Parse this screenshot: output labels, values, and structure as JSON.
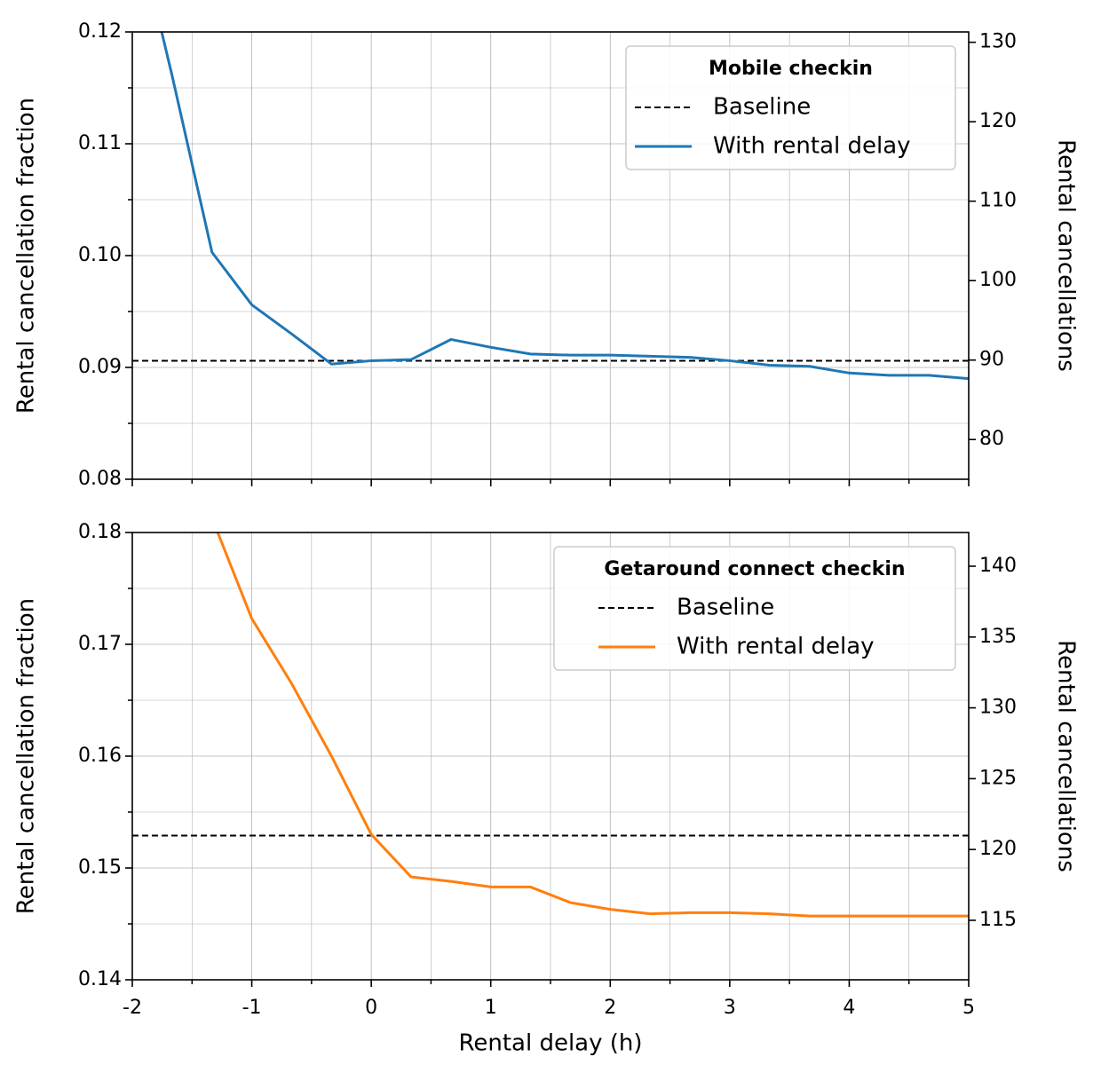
{
  "chart_data": [
    {
      "type": "line",
      "ylabel": "Rental cancellation fraction",
      "y2label": "Rental cancellations",
      "xlim": [
        -2,
        5
      ],
      "xticks": [
        -2,
        -1,
        0,
        1,
        2,
        3,
        4,
        5
      ],
      "show_xtick_labels": false,
      "ylim": [
        0.08,
        0.12
      ],
      "yticks": [
        0.08,
        0.09,
        {
          "value": 0.1,
          "label": "0.10"
        },
        0.11,
        0.12
      ],
      "y2lim": [
        75.0,
        131.3
      ],
      "y2ticks": [
        80,
        90,
        100,
        110,
        120,
        130
      ],
      "grid": true,
      "minor_grid": true,
      "legend_title": "Mobile checkin",
      "legend_loc": "upper right",
      "series": [
        {
          "name": "Baseline",
          "color": "#000000",
          "dashed": true,
          "x": [
            -2,
            5
          ],
          "values": [
            0.0906,
            0.0906
          ]
        },
        {
          "name": "With rental delay",
          "color": "#1f77b4",
          "dashed": false,
          "x": [
            -2,
            -1.667,
            -1.333,
            -1,
            -0.667,
            -0.333,
            0,
            0.333,
            0.667,
            1,
            1.333,
            1.667,
            2,
            2.333,
            2.667,
            3,
            3.333,
            3.667,
            4,
            4.333,
            4.667,
            5
          ],
          "values": [
            0.131,
            0.1161,
            0.1003,
            0.0956,
            0.093,
            0.0903,
            0.0906,
            0.0907,
            0.0925,
            0.0918,
            0.0912,
            0.0911,
            0.0911,
            0.091,
            0.0909,
            0.0906,
            0.0902,
            0.0901,
            0.0895,
            0.0893,
            0.0893,
            0.089
          ]
        }
      ]
    },
    {
      "type": "line",
      "ylabel": "Rental cancellation fraction",
      "y2label": "Rental cancellations",
      "xlabel": "Rental delay (h)",
      "xlim": [
        -2,
        5
      ],
      "xticks": [
        -2,
        -1,
        0,
        1,
        2,
        3,
        4,
        5
      ],
      "show_xtick_labels": true,
      "ylim": [
        0.14,
        0.18
      ],
      "yticks": [
        0.14,
        0.15,
        0.16,
        0.17,
        0.18
      ],
      "y2lim": [
        110.8,
        142.38
      ],
      "y2ticks": [
        115,
        120,
        125,
        130,
        135,
        140
      ],
      "grid": true,
      "minor_grid": true,
      "legend_title": "Getaround connect checkin",
      "legend_loc": "upper right",
      "series": [
        {
          "name": "Baseline",
          "color": "#000000",
          "dashed": true,
          "x": [
            -2,
            5
          ],
          "values": [
            0.1529,
            0.1529
          ]
        },
        {
          "name": "With rental delay",
          "color": "#ff7f0e",
          "dashed": false,
          "x": [
            -1.333,
            -1,
            -0.667,
            -0.333,
            0,
            0.333,
            0.667,
            1,
            1.333,
            1.667,
            2,
            2.333,
            2.667,
            3,
            3.333,
            3.667,
            4,
            4.333,
            4.667,
            5
          ],
          "values": [
            0.1813,
            0.1723,
            0.1665,
            0.16,
            0.153,
            0.1492,
            0.1488,
            0.1483,
            0.1483,
            0.1469,
            0.1463,
            0.1459,
            0.146,
            0.146,
            0.1459,
            0.1457,
            0.1457,
            0.1457,
            0.1457,
            0.1457
          ]
        }
      ]
    }
  ]
}
